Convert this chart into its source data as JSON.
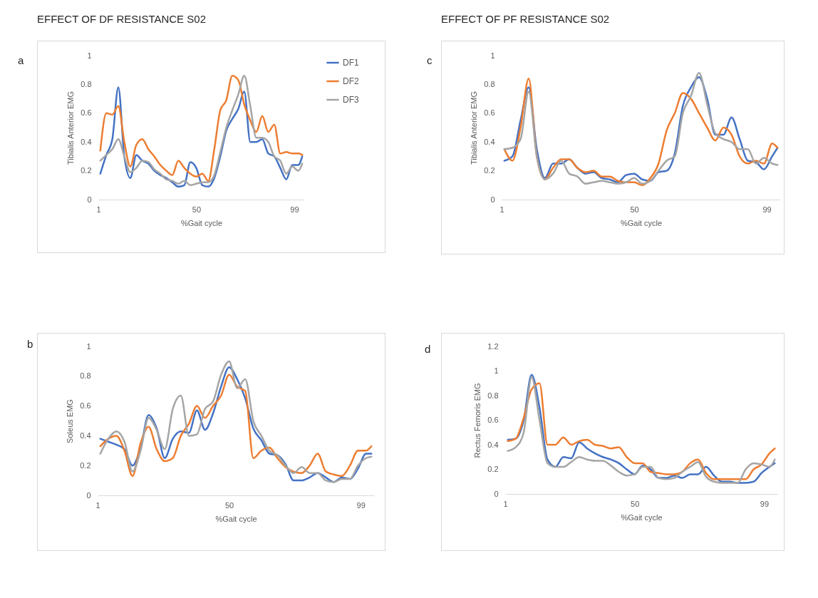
{
  "chart_data": [
    {
      "type": "line",
      "title": "EFFECT OF DF RESISTANCE S02",
      "annotations": [
        "a"
      ],
      "xlabel": "%Gait cycle",
      "ylabel": "Tibialis Anterior EMG",
      "legend": "right",
      "xlim": [
        1,
        104
      ],
      "xticks": [
        1,
        50,
        99
      ],
      "ylim": [
        0,
        1
      ],
      "yticks": [
        0,
        0.2,
        0.4,
        0.6,
        0.8,
        1
      ],
      "x": [
        2,
        5,
        8,
        11,
        14,
        17,
        20,
        23,
        26,
        29,
        32,
        35,
        38,
        41,
        44,
        47,
        50,
        53,
        56,
        59,
        62,
        65,
        68,
        71,
        74,
        77,
        80,
        83,
        86,
        89,
        92,
        95,
        98,
        101,
        103
      ],
      "series": [
        {
          "name": "DF1",
          "color": "#4472c4",
          "values": [
            0.18,
            0.31,
            0.42,
            0.78,
            0.3,
            0.15,
            0.31,
            0.27,
            0.25,
            0.2,
            0.17,
            0.15,
            0.12,
            0.09,
            0.1,
            0.26,
            0.22,
            0.1,
            0.09,
            0.15,
            0.3,
            0.48,
            0.56,
            0.63,
            0.75,
            0.4,
            0.4,
            0.42,
            0.32,
            0.3,
            0.22,
            0.14,
            0.24,
            0.24,
            0.3
          ]
        },
        {
          "name": "DF2",
          "color": "#ed7d31",
          "values": [
            0.34,
            0.6,
            0.59,
            0.65,
            0.4,
            0.23,
            0.38,
            0.42,
            0.35,
            0.3,
            0.24,
            0.2,
            0.17,
            0.27,
            0.22,
            0.18,
            0.16,
            0.18,
            0.13,
            0.35,
            0.62,
            0.69,
            0.86,
            0.83,
            0.66,
            0.55,
            0.47,
            0.58,
            0.47,
            0.52,
            0.32,
            0.33,
            0.32,
            0.32,
            0.31
          ]
        },
        {
          "name": "DF3",
          "color": "#a5a5a5",
          "values": [
            0.27,
            0.31,
            0.35,
            0.42,
            0.3,
            0.19,
            0.22,
            0.27,
            0.26,
            0.21,
            0.18,
            0.14,
            0.13,
            0.11,
            0.13,
            0.1,
            0.11,
            0.12,
            0.12,
            0.17,
            0.33,
            0.5,
            0.62,
            0.73,
            0.86,
            0.65,
            0.43,
            0.43,
            0.4,
            0.3,
            0.27,
            0.18,
            0.23,
            0.2,
            0.25
          ]
        }
      ]
    },
    {
      "type": "line",
      "title": "EFFECT OF PF RESISTANCE S02",
      "annotations": [
        "c"
      ],
      "xlabel": "%Gait cycle",
      "ylabel": "Tibialis Anterior EMG",
      "xlim": [
        1,
        104
      ],
      "xticks": [
        1,
        50,
        99
      ],
      "ylim": [
        0,
        1
      ],
      "yticks": [
        0,
        0.2,
        0.4,
        0.6,
        0.8,
        1
      ],
      "x": [
        2,
        5,
        8,
        11,
        14,
        17,
        20,
        23,
        26,
        29,
        32,
        35,
        38,
        41,
        44,
        47,
        50,
        53,
        56,
        59,
        62,
        65,
        68,
        71,
        74,
        77,
        80,
        83,
        86,
        89,
        92,
        95,
        98,
        101,
        103
      ],
      "series": [
        {
          "color": "#4472c4",
          "values": [
            0.27,
            0.3,
            0.55,
            0.78,
            0.35,
            0.15,
            0.25,
            0.25,
            0.28,
            0.22,
            0.18,
            0.19,
            0.15,
            0.14,
            0.12,
            0.17,
            0.18,
            0.14,
            0.13,
            0.19,
            0.2,
            0.32,
            0.65,
            0.78,
            0.85,
            0.7,
            0.45,
            0.45,
            0.57,
            0.42,
            0.27,
            0.26,
            0.21,
            0.3,
            0.36
          ]
        },
        {
          "color": "#ed7d31",
          "values": [
            0.35,
            0.27,
            0.5,
            0.84,
            0.3,
            0.14,
            0.22,
            0.28,
            0.28,
            0.22,
            0.19,
            0.2,
            0.16,
            0.16,
            0.13,
            0.12,
            0.12,
            0.1,
            0.15,
            0.25,
            0.48,
            0.6,
            0.74,
            0.7,
            0.6,
            0.5,
            0.41,
            0.5,
            0.45,
            0.3,
            0.25,
            0.27,
            0.25,
            0.39,
            0.36
          ]
        },
        {
          "color": "#a5a5a5",
          "values": [
            0.35,
            0.36,
            0.42,
            0.75,
            0.3,
            0.14,
            0.18,
            0.27,
            0.18,
            0.16,
            0.11,
            0.12,
            0.13,
            0.12,
            0.11,
            0.12,
            0.15,
            0.11,
            0.13,
            0.2,
            0.27,
            0.3,
            0.6,
            0.72,
            0.88,
            0.66,
            0.46,
            0.42,
            0.4,
            0.35,
            0.35,
            0.25,
            0.29,
            0.25,
            0.24
          ]
        }
      ]
    },
    {
      "type": "line",
      "annotations": [
        "b"
      ],
      "xlabel": "%Gait cycle",
      "ylabel": "Soleus EMG",
      "xlim": [
        1,
        104
      ],
      "xticks": [
        1,
        50,
        99
      ],
      "ylim": [
        0,
        1
      ],
      "yticks": [
        0,
        0.2,
        0.4,
        0.6,
        0.8,
        1
      ],
      "x": [
        2,
        5,
        8,
        11,
        14,
        17,
        20,
        23,
        26,
        29,
        32,
        35,
        38,
        41,
        44,
        47,
        50,
        53,
        56,
        59,
        62,
        65,
        68,
        71,
        74,
        77,
        80,
        83,
        86,
        89,
        92,
        95,
        98,
        101,
        103
      ],
      "series": [
        {
          "color": "#4472c4",
          "values": [
            0.38,
            0.36,
            0.34,
            0.31,
            0.2,
            0.32,
            0.54,
            0.45,
            0.25,
            0.38,
            0.43,
            0.42,
            0.57,
            0.44,
            0.55,
            0.73,
            0.86,
            0.78,
            0.65,
            0.45,
            0.37,
            0.28,
            0.27,
            0.21,
            0.1,
            0.1,
            0.12,
            0.15,
            0.12,
            0.09,
            0.12,
            0.11,
            0.18,
            0.28,
            0.28
          ]
        },
        {
          "color": "#ed7d31",
          "values": [
            0.33,
            0.38,
            0.4,
            0.3,
            0.13,
            0.35,
            0.46,
            0.31,
            0.23,
            0.25,
            0.4,
            0.48,
            0.6,
            0.52,
            0.6,
            0.67,
            0.81,
            0.73,
            0.7,
            0.25,
            0.3,
            0.32,
            0.25,
            0.19,
            0.16,
            0.15,
            0.2,
            0.28,
            0.16,
            0.14,
            0.13,
            0.2,
            0.3,
            0.3,
            0.33
          ]
        },
        {
          "color": "#a5a5a5",
          "values": [
            0.28,
            0.38,
            0.43,
            0.36,
            0.16,
            0.3,
            0.52,
            0.44,
            0.31,
            0.58,
            0.67,
            0.4,
            0.41,
            0.58,
            0.63,
            0.81,
            0.9,
            0.72,
            0.78,
            0.5,
            0.4,
            0.3,
            0.27,
            0.2,
            0.15,
            0.19,
            0.15,
            0.15,
            0.1,
            0.09,
            0.11,
            0.11,
            0.2,
            0.25,
            0.26
          ]
        }
      ]
    },
    {
      "type": "line",
      "annotations": [
        "d"
      ],
      "xlabel": "%Gait cycle",
      "ylabel": "Rectus Femoris EMG",
      "xlim": [
        1,
        104
      ],
      "xticks": [
        1,
        50,
        99
      ],
      "ylim": [
        0,
        1.2
      ],
      "yticks": [
        0,
        0.2,
        0.4,
        0.6,
        0.8,
        1,
        1.2
      ],
      "x": [
        2,
        5,
        8,
        11,
        14,
        17,
        20,
        23,
        26,
        29,
        32,
        35,
        38,
        41,
        44,
        47,
        50,
        53,
        56,
        59,
        62,
        65,
        68,
        71,
        74,
        77,
        80,
        83,
        86,
        89,
        92,
        95,
        98,
        101,
        103
      ],
      "series": [
        {
          "color": "#4472c4",
          "values": [
            0.44,
            0.45,
            0.6,
            0.97,
            0.7,
            0.28,
            0.22,
            0.3,
            0.29,
            0.42,
            0.37,
            0.33,
            0.3,
            0.28,
            0.25,
            0.2,
            0.16,
            0.23,
            0.2,
            0.13,
            0.13,
            0.15,
            0.13,
            0.16,
            0.16,
            0.22,
            0.15,
            0.1,
            0.1,
            0.09,
            0.09,
            0.1,
            0.17,
            0.22,
            0.25
          ]
        },
        {
          "color": "#ed7d31",
          "values": [
            0.43,
            0.45,
            0.62,
            0.85,
            0.9,
            0.4,
            0.4,
            0.46,
            0.4,
            0.43,
            0.44,
            0.4,
            0.39,
            0.37,
            0.38,
            0.3,
            0.25,
            0.25,
            0.18,
            0.17,
            0.16,
            0.16,
            0.18,
            0.25,
            0.28,
            0.17,
            0.12,
            0.12,
            0.12,
            0.12,
            0.12,
            0.2,
            0.24,
            0.33,
            0.37
          ]
        },
        {
          "color": "#a5a5a5",
          "values": [
            0.35,
            0.38,
            0.5,
            0.95,
            0.6,
            0.25,
            0.22,
            0.22,
            0.26,
            0.3,
            0.28,
            0.27,
            0.27,
            0.23,
            0.18,
            0.15,
            0.16,
            0.22,
            0.22,
            0.13,
            0.12,
            0.13,
            0.18,
            0.22,
            0.26,
            0.14,
            0.1,
            0.09,
            0.09,
            0.09,
            0.2,
            0.25,
            0.24,
            0.22,
            0.28
          ]
        }
      ]
    }
  ]
}
